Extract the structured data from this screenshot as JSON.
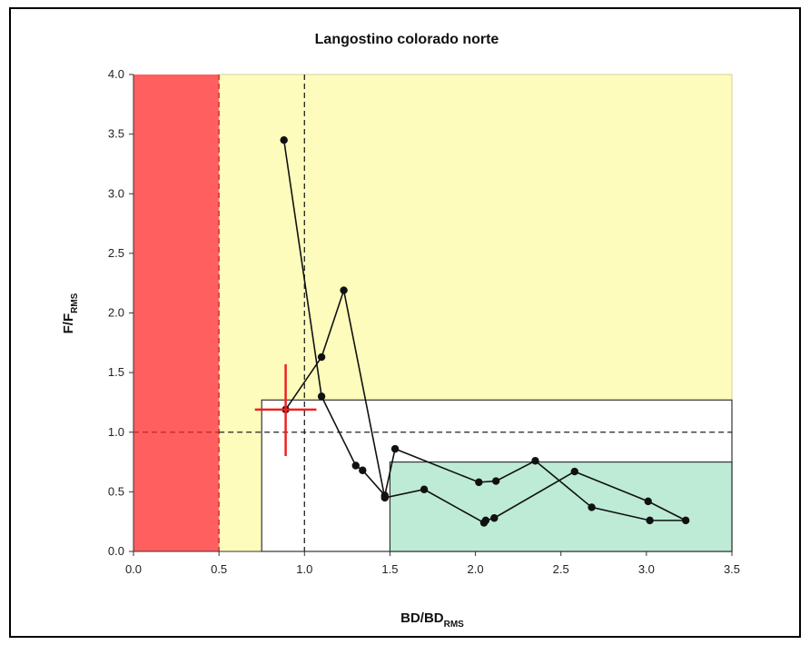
{
  "chart_data": {
    "type": "scatter",
    "title": "Langostino colorado norte",
    "xlabel": {
      "main": "BD/BD",
      "sub": "RMS"
    },
    "ylabel": {
      "main": "F/F",
      "sub": "RMS"
    },
    "xlim": [
      0,
      3.5
    ],
    "ylim": [
      0,
      4.0
    ],
    "x_ticks": [
      "0.0",
      "0.5",
      "1.0",
      "1.5",
      "2.0",
      "2.5",
      "3.0",
      "3.5"
    ],
    "y_ticks": [
      "0.0",
      "0.5",
      "1.0",
      "1.5",
      "2.0",
      "2.5",
      "3.0",
      "3.5",
      "4.0"
    ],
    "regions": [
      {
        "name": "red-zone",
        "x": [
          0,
          0.5
        ],
        "y": [
          0,
          4.0
        ],
        "color": "#ff5f5f"
      },
      {
        "name": "yellow-zone",
        "x": [
          0.5,
          3.5
        ],
        "y": [
          0,
          4.0
        ],
        "color": "#fdfcbc"
      },
      {
        "name": "white-zone",
        "x": [
          0.75,
          3.5
        ],
        "y": [
          0,
          1.27
        ],
        "color": "#ffffff"
      },
      {
        "name": "green-zone",
        "x": [
          1.5,
          3.5
        ],
        "y": [
          0,
          0.75
        ],
        "color": "#bdebd6"
      }
    ],
    "reference_lines": [
      {
        "name": "bd-limit",
        "axis": "x",
        "value": 0.5,
        "color": "#cc2222"
      },
      {
        "name": "bd-rms",
        "axis": "x",
        "value": 1.0,
        "color": "#222222"
      },
      {
        "name": "f-rms",
        "axis": "y",
        "value": 1.0,
        "color": "#222222"
      }
    ],
    "series": [
      {
        "points": [
          [
            0.88,
            3.45
          ],
          [
            1.1,
            1.3
          ],
          [
            1.3,
            0.72
          ],
          [
            1.34,
            0.68
          ],
          [
            1.47,
            0.47
          ],
          [
            1.53,
            0.86
          ],
          [
            2.02,
            0.58
          ],
          [
            2.12,
            0.59
          ],
          [
            2.35,
            0.76
          ],
          [
            2.68,
            0.37
          ],
          [
            3.02,
            0.26
          ],
          [
            3.23,
            0.26
          ],
          [
            3.01,
            0.42
          ],
          [
            2.58,
            0.67
          ],
          [
            2.11,
            0.28
          ],
          [
            2.06,
            0.26
          ],
          [
            2.05,
            0.24
          ],
          [
            1.7,
            0.52
          ],
          [
            1.47,
            0.45
          ],
          [
            1.23,
            2.19
          ],
          [
            1.1,
            1.63
          ],
          [
            0.89,
            1.19
          ]
        ],
        "color": "#111111"
      }
    ],
    "current_point": {
      "x": 0.89,
      "y": 1.19,
      "x_err": [
        0.71,
        1.07
      ],
      "y_err": [
        0.8,
        1.57
      ],
      "color": "#ee2222"
    },
    "grid": false,
    "legend": "none"
  }
}
